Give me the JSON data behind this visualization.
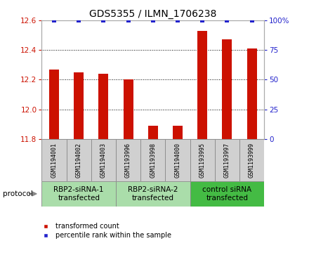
{
  "title": "GDS5355 / ILMN_1706238",
  "samples": [
    "GSM1194001",
    "GSM1194002",
    "GSM1194003",
    "GSM1193996",
    "GSM1193998",
    "GSM1194000",
    "GSM1193995",
    "GSM1193997",
    "GSM1193999"
  ],
  "bar_values": [
    12.27,
    12.25,
    12.24,
    12.2,
    11.89,
    11.89,
    12.53,
    12.47,
    12.41
  ],
  "percentile_values": [
    100,
    100,
    100,
    100,
    100,
    100,
    100,
    100,
    100
  ],
  "ylim_left": [
    11.8,
    12.6
  ],
  "ylim_right": [
    0,
    100
  ],
  "yticks_left": [
    11.8,
    12.0,
    12.2,
    12.4,
    12.6
  ],
  "yticks_right": [
    0,
    25,
    50,
    75,
    100
  ],
  "bar_color": "#cc1100",
  "percentile_color": "#2222cc",
  "groups": [
    {
      "label": "RBP2-siRNA-1\ntransfected",
      "start": 0,
      "end": 3,
      "color": "#aaddaa"
    },
    {
      "label": "RBP2-siRNA-2\ntransfected",
      "start": 3,
      "end": 6,
      "color": "#aaddaa"
    },
    {
      "label": "control siRNA\ntransfected",
      "start": 6,
      "end": 9,
      "color": "#44bb44"
    }
  ],
  "protocol_label": "protocol",
  "legend_bar_label": "transformed count",
  "legend_pct_label": "percentile rank within the sample",
  "spine_color": "#aaaaaa",
  "grid_color": "#000000",
  "title_fontsize": 10,
  "tick_fontsize": 7.5,
  "sample_fontsize": 6,
  "group_fontsize": 7.5,
  "legend_fontsize": 7
}
